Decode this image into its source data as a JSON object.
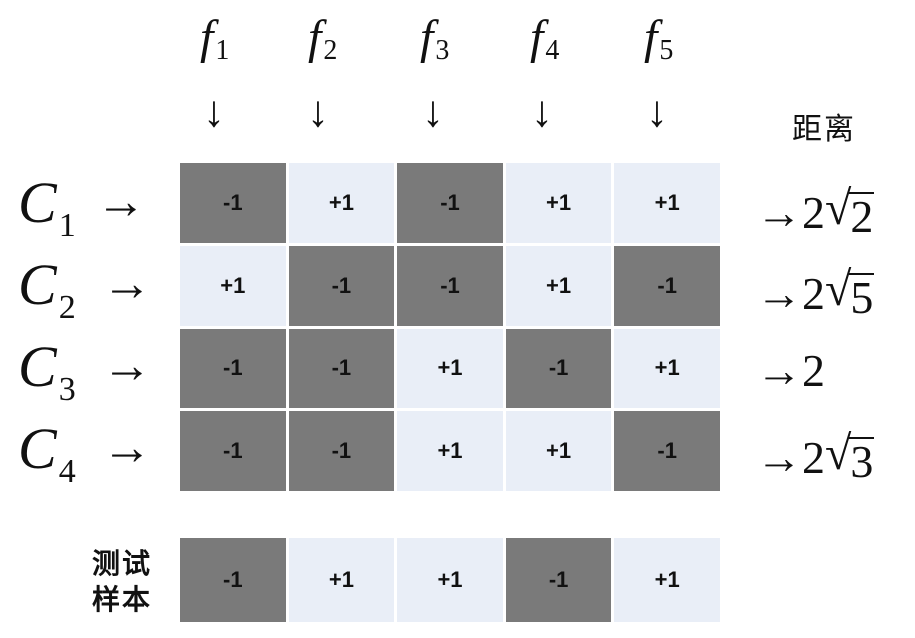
{
  "features": [
    {
      "base": "f",
      "sub": "1"
    },
    {
      "base": "f",
      "sub": "2"
    },
    {
      "base": "f",
      "sub": "3"
    },
    {
      "base": "f",
      "sub": "4"
    },
    {
      "base": "f",
      "sub": "5"
    }
  ],
  "arrow_down": "↓",
  "arrow_right": "→",
  "distance_title": "距离",
  "classes": [
    {
      "base": "C",
      "sub": "1",
      "codes": [
        "-1",
        "+1",
        "-1",
        "+1",
        "+1"
      ],
      "dist_coef": "2",
      "dist_rad": "2"
    },
    {
      "base": "C",
      "sub": "2",
      "codes": [
        "+1",
        "-1",
        "-1",
        "+1",
        "-1"
      ],
      "dist_coef": "2",
      "dist_rad": "5"
    },
    {
      "base": "C",
      "sub": "3",
      "codes": [
        "-1",
        "-1",
        "+1",
        "-1",
        "+1"
      ],
      "dist_coef": "2",
      "dist_rad": ""
    },
    {
      "base": "C",
      "sub": "4",
      "codes": [
        "-1",
        "-1",
        "+1",
        "+1",
        "-1"
      ],
      "dist_coef": "2",
      "dist_rad": "3"
    }
  ],
  "test_sample": {
    "label_line1": "测试",
    "label_line2": "样本",
    "codes": [
      "-1",
      "+1",
      "+1",
      "-1",
      "+1"
    ]
  },
  "colors": {
    "negative_cell": "#7a7a7a",
    "positive_cell": "#e9eef7"
  }
}
